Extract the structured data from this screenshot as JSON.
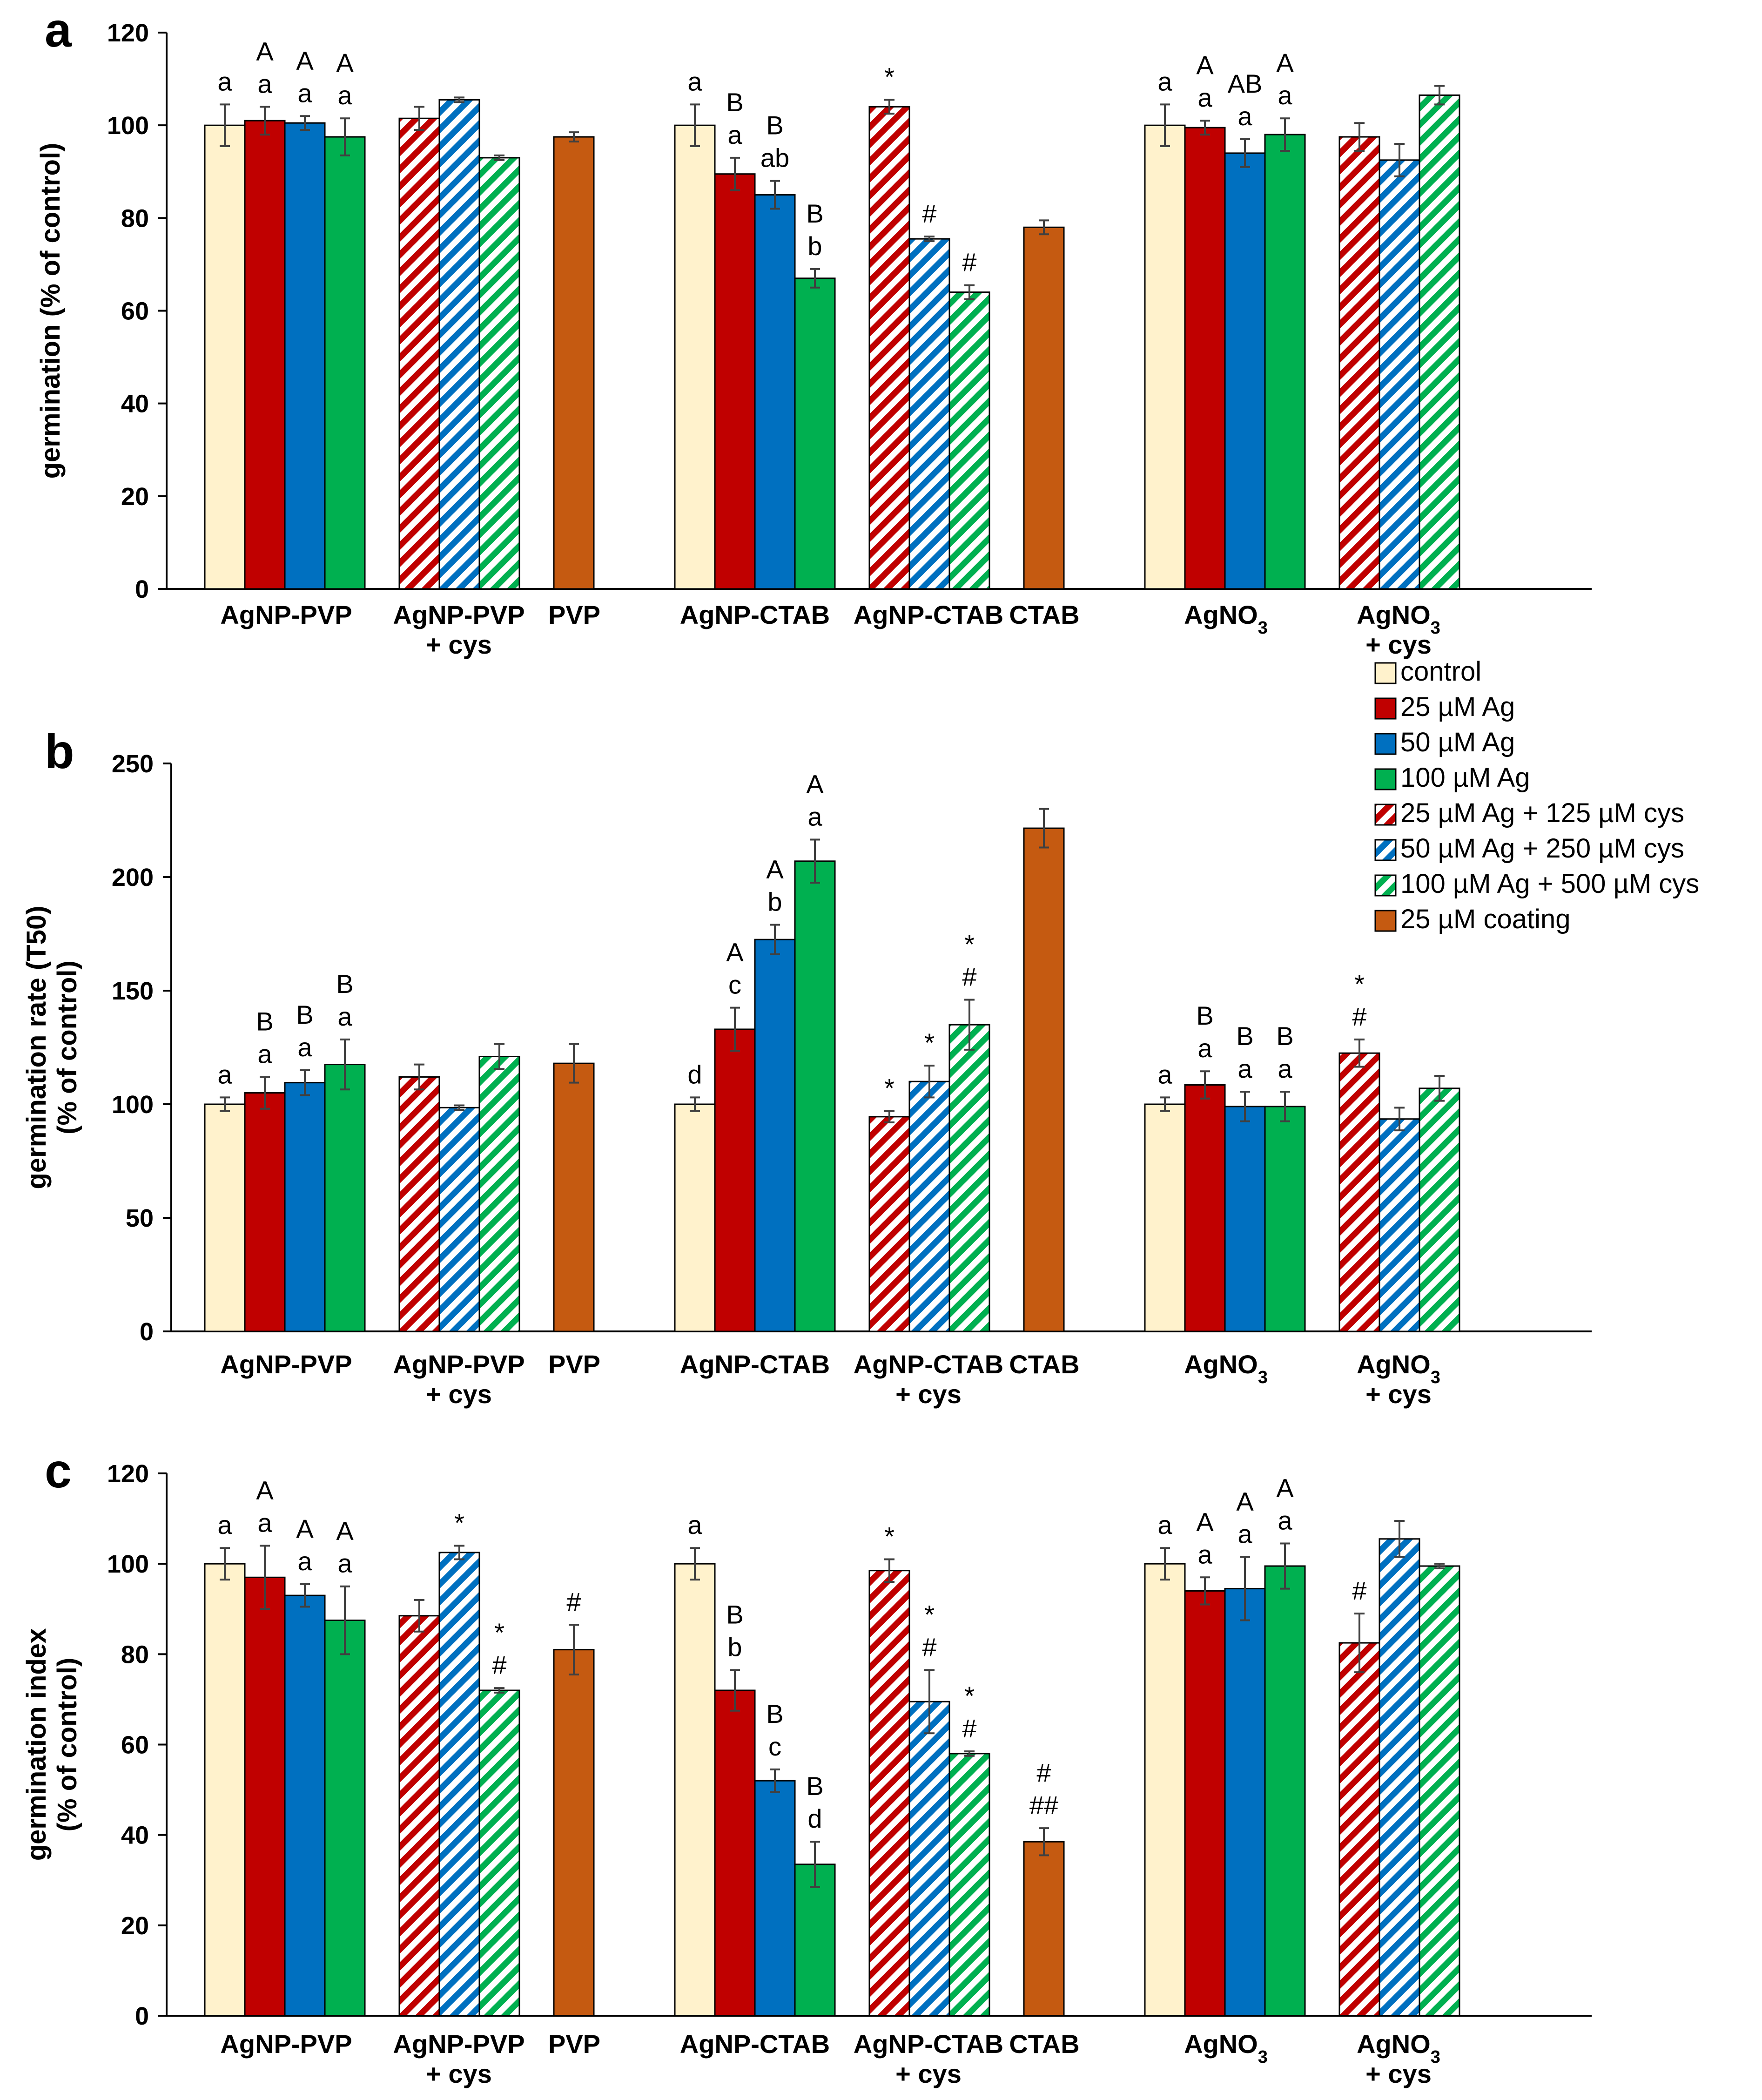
{
  "colors": {
    "control": "#FFF2CC",
    "ag25": "#C00000",
    "ag50": "#0070C0",
    "ag100": "#00B050",
    "coating": "#C55A11"
  },
  "legend": [
    {
      "label": "control",
      "fill": "control",
      "hatch": false
    },
    {
      "label": "25 µM Ag",
      "fill": "ag25",
      "hatch": false
    },
    {
      "label": "50 µM Ag",
      "fill": "ag50",
      "hatch": false
    },
    {
      "label": "100 µM Ag",
      "fill": "ag100",
      "hatch": false
    },
    {
      "label": "25 µM Ag + 125 µM cys",
      "fill": "ag25",
      "hatch": true
    },
    {
      "label": "50 µM Ag + 250 µM cys",
      "fill": "ag50",
      "hatch": true
    },
    {
      "label": "100 µM Ag + 500 µM cys",
      "fill": "ag100",
      "hatch": true
    },
    {
      "label": "25  µM coating",
      "fill": "coating",
      "hatch": false
    }
  ],
  "chart_data": [
    {
      "panel": "a",
      "type": "bar",
      "ylabel_lines": [
        "germination (% of control)"
      ],
      "ylim": [
        0,
        120
      ],
      "yticks": [
        0,
        20,
        40,
        60,
        80,
        100,
        120
      ],
      "categories": [
        {
          "lines": [
            "AgNP-PVP"
          ]
        },
        {
          "lines": [
            "AgNP-PVP",
            "+ cys"
          ]
        },
        {
          "lines": [
            "PVP"
          ]
        },
        {
          "lines": [
            "AgNP-CTAB"
          ]
        },
        {
          "lines": [
            "AgNP-CTAB"
          ]
        },
        {
          "lines": [
            "CTAB"
          ]
        },
        {
          "lines": [
            "AgNO3"
          ],
          "sub": true
        },
        {
          "lines": [
            "AgNO3",
            "+ cys"
          ],
          "sub": true
        }
      ],
      "groups": [
        {
          "bars": [
            {
              "series": "control",
              "value": 100,
              "err": 4.5,
              "ann": [
                "a"
              ]
            },
            {
              "series": "25 µM Ag",
              "value": 101,
              "err": 3,
              "ann": [
                "A",
                "a"
              ]
            },
            {
              "series": "50 µM Ag",
              "value": 100.5,
              "err": 1.5,
              "ann": [
                "A",
                "a"
              ]
            },
            {
              "series": "100 µM Ag",
              "value": 97.5,
              "err": 4,
              "ann": [
                "A",
                "a"
              ]
            }
          ]
        },
        {
          "bars": [
            {
              "series": "25 µM Ag + 125 µM cys",
              "value": 101.5,
              "err": 2.5,
              "ann": []
            },
            {
              "series": "50 µM Ag + 250 µM cys",
              "value": 105.5,
              "err": 0.5,
              "ann": []
            },
            {
              "series": "100 µM Ag + 500 µM cys",
              "value": 93,
              "err": 0.5,
              "ann": []
            }
          ]
        },
        {
          "bars": [
            {
              "series": "25 µM coating",
              "value": 97.5,
              "err": 1,
              "ann": []
            }
          ]
        },
        {
          "bars": [
            {
              "series": "control",
              "value": 100,
              "err": 4.5,
              "ann": [
                "a"
              ]
            },
            {
              "series": "25 µM Ag",
              "value": 89.5,
              "err": 3.5,
              "ann": [
                "B",
                "a"
              ]
            },
            {
              "series": "50 µM Ag",
              "value": 85,
              "err": 3,
              "ann": [
                "B",
                "ab"
              ]
            },
            {
              "series": "100 µM Ag",
              "value": 67,
              "err": 2,
              "ann": [
                "B",
                "b"
              ]
            }
          ]
        },
        {
          "bars": [
            {
              "series": "25 µM Ag + 125 µM cys",
              "value": 104,
              "err": 1.5,
              "ann": [
                "*"
              ]
            },
            {
              "series": "50 µM Ag + 250 µM cys",
              "value": 75.5,
              "err": 0.5,
              "ann": [
                "#"
              ]
            },
            {
              "series": "100 µM Ag + 500 µM cys",
              "value": 64,
              "err": 1.5,
              "ann": [
                "#"
              ]
            }
          ]
        },
        {
          "bars": [
            {
              "series": "25 µM coating",
              "value": 78,
              "err": 1.5,
              "ann": []
            }
          ]
        },
        {
          "bars": [
            {
              "series": "control",
              "value": 100,
              "err": 4.5,
              "ann": [
                "a"
              ]
            },
            {
              "series": "25 µM Ag",
              "value": 99.5,
              "err": 1.5,
              "ann": [
                "A",
                "a"
              ]
            },
            {
              "series": "50 µM Ag",
              "value": 94,
              "err": 3,
              "ann": [
                "AB",
                "a"
              ]
            },
            {
              "series": "100 µM Ag",
              "value": 98,
              "err": 3.5,
              "ann": [
                "A",
                "a"
              ]
            }
          ]
        },
        {
          "bars": [
            {
              "series": "25 µM Ag + 125 µM cys",
              "value": 97.5,
              "err": 3,
              "ann": []
            },
            {
              "series": "50 µM Ag + 250 µM cys",
              "value": 92.5,
              "err": 3.5,
              "ann": []
            },
            {
              "series": "100 µM Ag + 500 µM cys",
              "value": 106.5,
              "err": 2,
              "ann": []
            }
          ]
        }
      ]
    },
    {
      "panel": "b",
      "type": "bar",
      "ylabel_lines": [
        "germination rate (T50)",
        "(% of control)"
      ],
      "ylim": [
        0,
        250
      ],
      "yticks": [
        0,
        50,
        100,
        150,
        200,
        250
      ],
      "categories": [
        {
          "lines": [
            "AgNP-PVP"
          ]
        },
        {
          "lines": [
            "AgNP-PVP",
            "+ cys"
          ]
        },
        {
          "lines": [
            "PVP"
          ]
        },
        {
          "lines": [
            "AgNP-CTAB"
          ]
        },
        {
          "lines": [
            "AgNP-CTAB",
            "+ cys"
          ]
        },
        {
          "lines": [
            "CTAB"
          ]
        },
        {
          "lines": [
            "AgNO3"
          ],
          "sub": true
        },
        {
          "lines": [
            "AgNO3",
            "+ cys"
          ],
          "sub": true
        }
      ],
      "groups": [
        {
          "bars": [
            {
              "series": "control",
              "value": 100,
              "err": 3,
              "ann": [
                "a"
              ]
            },
            {
              "series": "25 µM Ag",
              "value": 105,
              "err": 7,
              "ann": [
                "B",
                "a"
              ]
            },
            {
              "series": "50 µM Ag",
              "value": 109.5,
              "err": 5.5,
              "ann": [
                "B",
                "a"
              ]
            },
            {
              "series": "100 µM Ag",
              "value": 117.5,
              "err": 11,
              "ann": [
                "B",
                "a"
              ]
            }
          ]
        },
        {
          "bars": [
            {
              "series": "25 µM Ag + 125 µM cys",
              "value": 112,
              "err": 5.5,
              "ann": []
            },
            {
              "series": "50 µM Ag + 250 µM cys",
              "value": 98.5,
              "err": 1,
              "ann": []
            },
            {
              "series": "100 µM Ag + 500 µM cys",
              "value": 121,
              "err": 5.5,
              "ann": []
            }
          ]
        },
        {
          "bars": [
            {
              "series": "25 µM coating",
              "value": 118,
              "err": 8.5,
              "ann": []
            }
          ]
        },
        {
          "bars": [
            {
              "series": "control",
              "value": 100,
              "err": 3,
              "ann": [
                "d"
              ]
            },
            {
              "series": "25 µM Ag",
              "value": 133,
              "err": 9.5,
              "ann": [
                "A",
                "c"
              ]
            },
            {
              "series": "50 µM Ag",
              "value": 172.5,
              "err": 6.5,
              "ann": [
                "A",
                "b"
              ]
            },
            {
              "series": "100 µM Ag",
              "value": 207,
              "err": 9.5,
              "ann": [
                "A",
                "a"
              ]
            }
          ]
        },
        {
          "bars": [
            {
              "series": "25 µM Ag + 125 µM cys",
              "value": 94.5,
              "err": 2.5,
              "ann": [
                "*"
              ]
            },
            {
              "series": "50 µM Ag + 250 µM cys",
              "value": 110,
              "err": 7,
              "ann": [
                "*"
              ]
            },
            {
              "series": "100 µM Ag + 500 µM cys",
              "value": 135,
              "err": 11,
              "ann": [
                "*",
                "#"
              ]
            }
          ]
        },
        {
          "bars": [
            {
              "series": "25 µM coating",
              "value": 221.5,
              "err": 8.5,
              "ann": []
            }
          ]
        },
        {
          "bars": [
            {
              "series": "control",
              "value": 100,
              "err": 3,
              "ann": [
                "a"
              ]
            },
            {
              "series": "25 µM Ag",
              "value": 108.5,
              "err": 6,
              "ann": [
                "B",
                "a"
              ]
            },
            {
              "series": "50 µM Ag",
              "value": 99,
              "err": 6.5,
              "ann": [
                "B",
                "a"
              ]
            },
            {
              "series": "100 µM Ag",
              "value": 99,
              "err": 6.5,
              "ann": [
                "B",
                "a"
              ]
            }
          ]
        },
        {
          "bars": [
            {
              "series": "25 µM Ag + 125 µM cys",
              "value": 122.5,
              "err": 6,
              "ann": [
                "*",
                "#"
              ]
            },
            {
              "series": "50 µM Ag + 250 µM cys",
              "value": 93.5,
              "err": 5,
              "ann": []
            },
            {
              "series": "100 µM Ag + 500 µM cys",
              "value": 107,
              "err": 5.5,
              "ann": []
            }
          ]
        }
      ]
    },
    {
      "panel": "c",
      "type": "bar",
      "ylabel_lines": [
        "germination index",
        "(% of control)"
      ],
      "ylim": [
        0,
        120
      ],
      "yticks": [
        0,
        20,
        40,
        60,
        80,
        100,
        120
      ],
      "categories": [
        {
          "lines": [
            "AgNP-PVP"
          ]
        },
        {
          "lines": [
            "AgNP-PVP",
            "+ cys"
          ]
        },
        {
          "lines": [
            "PVP"
          ]
        },
        {
          "lines": [
            "AgNP-CTAB"
          ]
        },
        {
          "lines": [
            "AgNP-CTAB",
            "+ cys"
          ]
        },
        {
          "lines": [
            "CTAB"
          ]
        },
        {
          "lines": [
            "AgNO3"
          ],
          "sub": true
        },
        {
          "lines": [
            "AgNO3",
            "+ cys"
          ],
          "sub": true
        }
      ],
      "groups": [
        {
          "bars": [
            {
              "series": "control",
              "value": 100,
              "err": 3.5,
              "ann": [
                "a"
              ]
            },
            {
              "series": "25 µM Ag",
              "value": 97,
              "err": 7,
              "ann": [
                "A",
                "a"
              ]
            },
            {
              "series": "50 µM Ag",
              "value": 93,
              "err": 2.5,
              "ann": [
                "A",
                "a"
              ]
            },
            {
              "series": "100 µM Ag",
              "value": 87.5,
              "err": 7.5,
              "ann": [
                "A",
                "a"
              ]
            }
          ]
        },
        {
          "bars": [
            {
              "series": "25 µM Ag + 125 µM cys",
              "value": 88.5,
              "err": 3.5,
              "ann": []
            },
            {
              "series": "50 µM Ag + 250 µM cys",
              "value": 102.5,
              "err": 1.5,
              "ann": [
                "*"
              ]
            },
            {
              "series": "100 µM Ag + 500 µM cys",
              "value": 72,
              "err": 0.5,
              "ann": [
                "*",
                "#"
              ]
            }
          ]
        },
        {
          "bars": [
            {
              "series": "25 µM coating",
              "value": 81,
              "err": 5.5,
              "ann": [
                "#"
              ]
            }
          ]
        },
        {
          "bars": [
            {
              "series": "control",
              "value": 100,
              "err": 3.5,
              "ann": [
                "a"
              ]
            },
            {
              "series": "25 µM Ag",
              "value": 72,
              "err": 4.5,
              "ann": [
                "B",
                "b"
              ]
            },
            {
              "series": "50 µM Ag",
              "value": 52,
              "err": 2.5,
              "ann": [
                "B",
                "c"
              ]
            },
            {
              "series": "100 µM Ag",
              "value": 33.5,
              "err": 5,
              "ann": [
                "B",
                "d"
              ]
            }
          ]
        },
        {
          "bars": [
            {
              "series": "25 µM Ag + 125 µM cys",
              "value": 98.5,
              "err": 2.5,
              "ann": [
                "*"
              ]
            },
            {
              "series": "50 µM Ag + 250 µM cys",
              "value": 69.5,
              "err": 7,
              "ann": [
                "*",
                "#"
              ]
            },
            {
              "series": "100 µM Ag + 500 µM cys",
              "value": 58,
              "err": 0.5,
              "ann": [
                "*",
                "#"
              ]
            }
          ]
        },
        {
          "bars": [
            {
              "series": "25 µM coating",
              "value": 38.5,
              "err": 3,
              "ann": [
                "#",
                "##"
              ]
            }
          ]
        },
        {
          "bars": [
            {
              "series": "control",
              "value": 100,
              "err": 3.5,
              "ann": [
                "a"
              ]
            },
            {
              "series": "25 µM Ag",
              "value": 94,
              "err": 3,
              "ann": [
                "A",
                "a"
              ]
            },
            {
              "series": "50 µM Ag",
              "value": 94.5,
              "err": 7,
              "ann": [
                "A",
                "a"
              ]
            },
            {
              "series": "100 µM Ag",
              "value": 99.5,
              "err": 5,
              "ann": [
                "A",
                "a"
              ]
            }
          ]
        },
        {
          "bars": [
            {
              "series": "25 µM Ag + 125 µM cys",
              "value": 82.5,
              "err": 6.5,
              "ann": [
                "#"
              ]
            },
            {
              "series": "50 µM Ag + 250 µM cys",
              "value": 105.5,
              "err": 4,
              "ann": []
            },
            {
              "series": "100 µM Ag + 500 µM cys",
              "value": 99.5,
              "err": 0.5,
              "ann": []
            }
          ]
        }
      ]
    }
  ]
}
